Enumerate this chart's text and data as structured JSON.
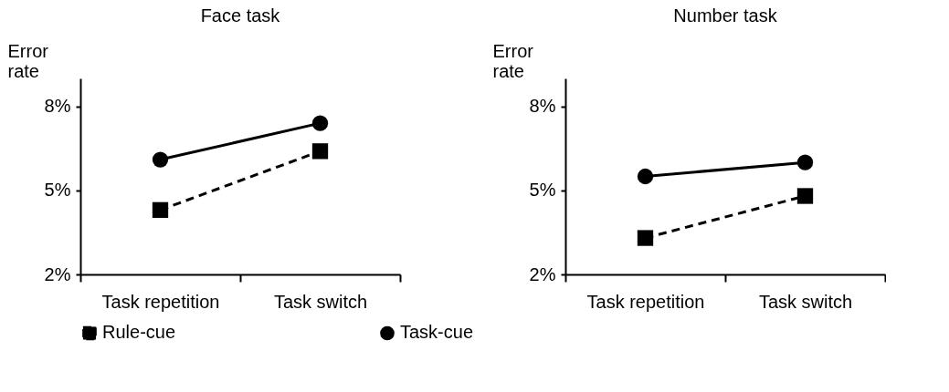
{
  "chart_data": [
    {
      "type": "line",
      "title": "Face task",
      "ylabel": "Error rate",
      "categories": [
        "Task repetition",
        "Task switch"
      ],
      "ylim": [
        2,
        9
      ],
      "yticks": [
        {
          "value": 2,
          "label": "2%"
        },
        {
          "value": 5,
          "label": "5%"
        },
        {
          "value": 8,
          "label": "8%"
        }
      ],
      "legend": "bottom",
      "grid": false,
      "series": [
        {
          "name": "Rule-cue",
          "color": "#000000",
          "values": [
            4.3,
            6.4
          ],
          "marker": "square",
          "line_style": "dashed"
        },
        {
          "name": "Task-cue",
          "color": "#000000",
          "values": [
            6.1,
            7.4
          ],
          "marker": "circle",
          "line_style": "solid"
        }
      ]
    },
    {
      "type": "line",
      "title": "Number task",
      "ylabel": "Error rate",
      "categories": [
        "Task repetition",
        "Task switch"
      ],
      "ylim": [
        2,
        9
      ],
      "yticks": [
        {
          "value": 2,
          "label": "2%"
        },
        {
          "value": 5,
          "label": "5%"
        },
        {
          "value": 8,
          "label": "8%"
        }
      ],
      "legend": "bottom",
      "grid": false,
      "series": [
        {
          "name": "Rule-cue",
          "color": "#000000",
          "values": [
            3.3,
            4.8
          ],
          "marker": "square",
          "line_style": "dashed"
        },
        {
          "name": "Task-cue",
          "color": "#000000",
          "values": [
            5.5,
            6.0
          ],
          "marker": "circle",
          "line_style": "solid"
        }
      ]
    }
  ]
}
